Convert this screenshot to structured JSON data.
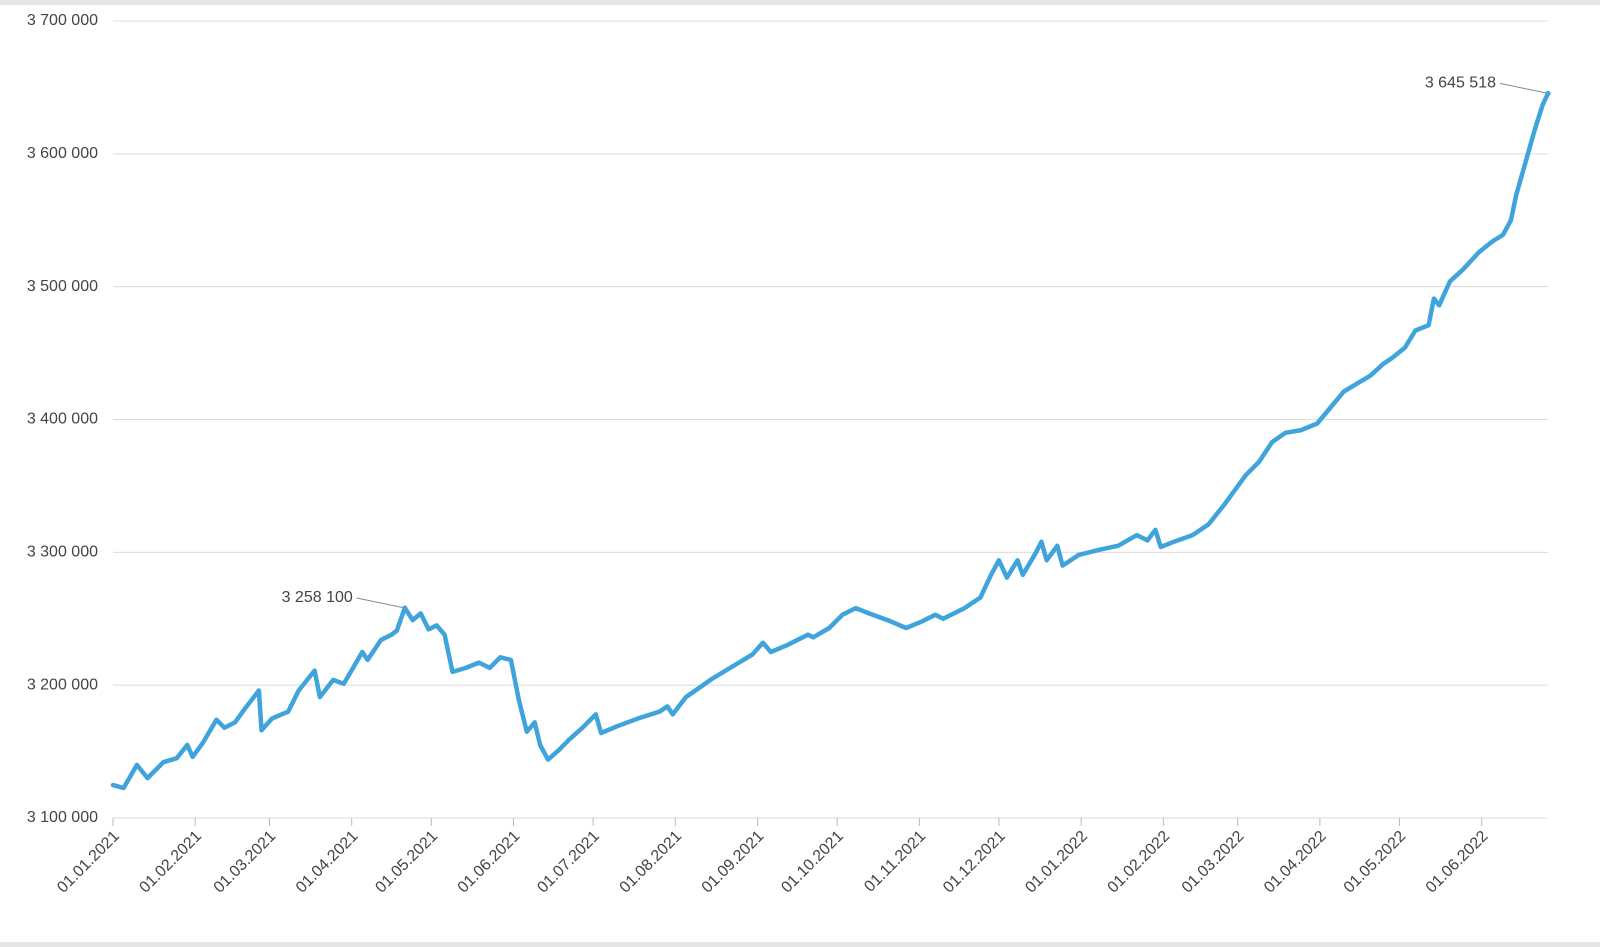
{
  "chart_data": {
    "type": "line",
    "x": [
      "01.01.2021",
      "05.01.2021",
      "10.01.2021",
      "14.01.2021",
      "20.01.2021",
      "25.01.2021",
      "29.01.2021",
      "31.01.2021",
      "04.02.2021",
      "09.02.2021",
      "12.02.2021",
      "16.02.2021",
      "20.02.2021",
      "25.02.2021",
      "26.02.2021",
      "02.03.2021",
      "08.03.2021",
      "12.03.2021",
      "18.03.2021",
      "20.03.2021",
      "25.03.2021",
      "29.03.2021",
      "05.04.2021",
      "07.04.2021",
      "12.04.2021",
      "16.04.2021",
      "18.04.2021",
      "21.04.2021",
      "24.04.2021",
      "27.04.2021",
      "30.04.2021",
      "03.05.2021",
      "06.05.2021",
      "09.05.2021",
      "14.05.2021",
      "19.05.2021",
      "23.05.2021",
      "27.05.2021",
      "31.05.2021",
      "03.06.2021",
      "06.06.2021",
      "09.06.2021",
      "11.06.2021",
      "14.06.2021",
      "18.06.2021",
      "22.06.2021",
      "27.06.2021",
      "02.07.2021",
      "04.07.2021",
      "10.07.2021",
      "18.07.2021",
      "26.07.2021",
      "29.07.2021",
      "31.07.2021",
      "05.08.2021",
      "15.08.2021",
      "25.08.2021",
      "30.08.2021",
      "03.09.2021",
      "06.09.2021",
      "12.09.2021",
      "20.09.2021",
      "22.09.2021",
      "28.09.2021",
      "03.10.2021",
      "08.10.2021",
      "13.10.2021",
      "20.10.2021",
      "27.10.2021",
      "02.11.2021",
      "07.11.2021",
      "10.11.2021",
      "18.11.2021",
      "24.11.2021",
      "28.11.2021",
      "01.12.2021",
      "04.12.2021",
      "08.12.2021",
      "10.12.2021",
      "15.12.2021",
      "17.12.2021",
      "19.12.2021",
      "23.12.2021",
      "25.12.2021",
      "31.12.2021",
      "08.01.2022",
      "15.01.2022",
      "22.01.2022",
      "26.01.2022",
      "29.01.2022",
      "31.01.2022",
      "05.02.2022",
      "12.02.2022",
      "18.02.2022",
      "24.02.2022",
      "28.02.2022",
      "04.03.2022",
      "09.03.2022",
      "14.03.2022",
      "19.03.2022",
      "25.03.2022",
      "31.03.2022",
      "05.04.2022",
      "10.04.2022",
      "15.04.2022",
      "20.04.2022",
      "25.04.2022",
      "28.04.2022",
      "03.05.2022",
      "07.05.2022",
      "12.05.2022",
      "14.05.2022",
      "16.05.2022",
      "20.05.2022",
      "25.05.2022",
      "31.05.2022",
      "05.06.2022",
      "09.06.2022",
      "12.06.2022",
      "14.06.2022",
      "18.06.2022",
      "21.06.2022",
      "24.06.2022",
      "26.06.2022"
    ],
    "series": [
      {
        "name": "value",
        "color": "#3fa3dc",
        "values": [
          3124800,
          3122600,
          3140000,
          3130000,
          3142000,
          3145000,
          3155000,
          3146000,
          3157000,
          3174000,
          3168000,
          3172000,
          3183000,
          3196000,
          3166000,
          3175000,
          3180000,
          3196000,
          3211000,
          3191000,
          3204000,
          3201000,
          3225000,
          3219000,
          3234000,
          3238000,
          3241000,
          3258100,
          3249000,
          3254000,
          3242000,
          3245000,
          3238000,
          3210000,
          3213000,
          3217000,
          3213000,
          3221000,
          3219000,
          3189000,
          3165000,
          3172000,
          3155000,
          3144000,
          3151000,
          3159000,
          3168000,
          3178000,
          3164000,
          3169000,
          3175000,
          3180000,
          3184000,
          3178000,
          3191000,
          3205000,
          3217000,
          3223000,
          3232000,
          3225000,
          3230000,
          3238000,
          3236000,
          3243000,
          3253000,
          3258000,
          3254000,
          3249000,
          3243000,
          3248000,
          3253000,
          3250000,
          3258000,
          3266000,
          3283000,
          3294000,
          3281000,
          3294000,
          3283000,
          3300000,
          3308000,
          3294000,
          3305000,
          3290000,
          3298000,
          3302000,
          3305000,
          3313000,
          3309000,
          3317000,
          3304000,
          3308000,
          3313000,
          3321000,
          3336000,
          3347000,
          3358000,
          3368000,
          3383000,
          3390000,
          3392000,
          3397000,
          3409000,
          3421000,
          3427000,
          3433000,
          3442000,
          3446000,
          3454000,
          3467000,
          3471000,
          3491000,
          3486000,
          3504000,
          3513000,
          3526000,
          3534000,
          3539000,
          3550000,
          3569000,
          3597000,
          3618000,
          3637000,
          3645518
        ]
      }
    ],
    "xlim": [
      "01.01.2021",
      "26.06.2022"
    ],
    "xticks": [
      "01.01.2021",
      "01.02.2021",
      "01.03.2021",
      "01.04.2021",
      "01.05.2021",
      "01.06.2021",
      "01.07.2021",
      "01.08.2021",
      "01.09.2021",
      "01.10.2021",
      "01.11.2021",
      "01.12.2021",
      "01.01.2022",
      "01.02.2022",
      "01.03.2022",
      "01.04.2022",
      "01.05.2022",
      "01.06.2022"
    ],
    "ylim": [
      3100000,
      3700000
    ],
    "yticks": [
      {
        "value": 3100000,
        "label": "3 100 000"
      },
      {
        "value": 3200000,
        "label": "3 200 000"
      },
      {
        "value": 3300000,
        "label": "3 300 000"
      },
      {
        "value": 3400000,
        "label": "3 400 000"
      },
      {
        "value": 3500000,
        "label": "3 500 000"
      },
      {
        "value": 3600000,
        "label": "3 600 000"
      },
      {
        "value": 3700000,
        "label": "3 700 000"
      }
    ],
    "grid": true,
    "annotations": [
      {
        "x": "21.04.2021",
        "y": 3258100,
        "label": "3 258 100"
      },
      {
        "x": "26.06.2022",
        "y": 3645518,
        "label": "3 645 518"
      }
    ]
  }
}
